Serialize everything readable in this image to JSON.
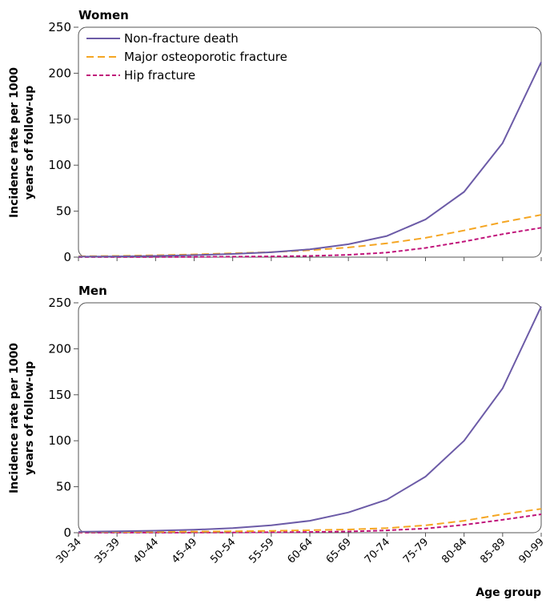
{
  "chart_data": [
    {
      "type": "line",
      "title": "Women",
      "ylabel_line1": "Incidence rate per 1000",
      "ylabel_line2": "years of follow-up",
      "categories": [
        "30-34",
        "35-39",
        "40-44",
        "45-49",
        "50-54",
        "55-59",
        "60-64",
        "65-69",
        "70-74",
        "75-79",
        "80-84",
        "85-89",
        "90-99"
      ],
      "ylim": [
        0,
        250
      ],
      "yticks": [
        0,
        50,
        100,
        150,
        200,
        250
      ],
      "legend_position": "top-left",
      "grid": false,
      "series": [
        {
          "name": "Non-fracture death",
          "color": "#6c5ba7",
          "dash": "solid",
          "values": [
            0.5,
            0.8,
            1.3,
            2.2,
            3.5,
            5.3,
            8.5,
            14,
            23,
            41,
            71,
            124,
            212
          ]
        },
        {
          "name": "Major osteoporotic fracture",
          "color": "#f5a623",
          "dash": "long",
          "values": [
            1.0,
            1.3,
            2.0,
            3.0,
            4.2,
            5.5,
            7.5,
            10.5,
            15,
            21,
            29,
            38,
            46
          ]
        },
        {
          "name": "Hip fracture",
          "color": "#c0137a",
          "dash": "short",
          "values": [
            0.1,
            0.1,
            0.2,
            0.3,
            0.5,
            0.8,
            1.3,
            2.5,
            5,
            10,
            17,
            25,
            32
          ]
        }
      ]
    },
    {
      "type": "line",
      "title": "Men",
      "ylabel_line1": "Incidence rate per 1000",
      "ylabel_line2": "years of follow-up",
      "xlabel": "Age group",
      "categories": [
        "30-34",
        "35-39",
        "40-44",
        "45-49",
        "50-54",
        "55-59",
        "60-64",
        "65-69",
        "70-74",
        "75-79",
        "80-84",
        "85-89",
        "90-99"
      ],
      "ylim": [
        0,
        250
      ],
      "yticks": [
        0,
        50,
        100,
        150,
        200,
        250
      ],
      "grid": false,
      "series": [
        {
          "name": "Non-fracture death",
          "color": "#6c5ba7",
          "dash": "solid",
          "values": [
            1.0,
            1.5,
            2.2,
            3.2,
            5.0,
            8.0,
            13,
            22,
            36,
            61,
            100,
            157,
            246
          ]
        },
        {
          "name": "Major osteoporotic fracture",
          "color": "#f5a623",
          "dash": "long",
          "values": [
            0.8,
            0.9,
            1.0,
            1.2,
            1.5,
            2.0,
            2.7,
            3.5,
            5,
            8,
            13,
            20,
            26
          ]
        },
        {
          "name": "Hip fracture",
          "color": "#c0137a",
          "dash": "short",
          "values": [
            0.1,
            0.1,
            0.1,
            0.2,
            0.3,
            0.5,
            0.8,
            1.3,
            2.5,
            4.5,
            8.5,
            14,
            20
          ]
        }
      ]
    }
  ]
}
